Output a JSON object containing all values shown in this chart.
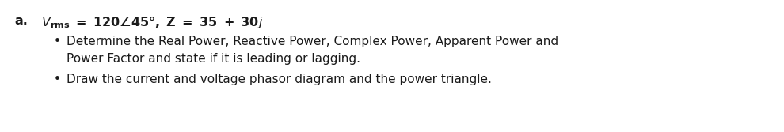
{
  "background_color": "#ffffff",
  "label_a": "a.",
  "bullet1_line1": "Determine the Real Power, Reactive Power, Complex Power, Apparent Power and",
  "bullet1_line2": "Power Factor and state if it is leading or lagging.",
  "bullet2": "Draw the current and voltage phasor diagram and the power triangle.",
  "text_color": "#1a1a1a",
  "font_size_header": 11.5,
  "font_size_body": 11.0,
  "bullet_char": "•"
}
